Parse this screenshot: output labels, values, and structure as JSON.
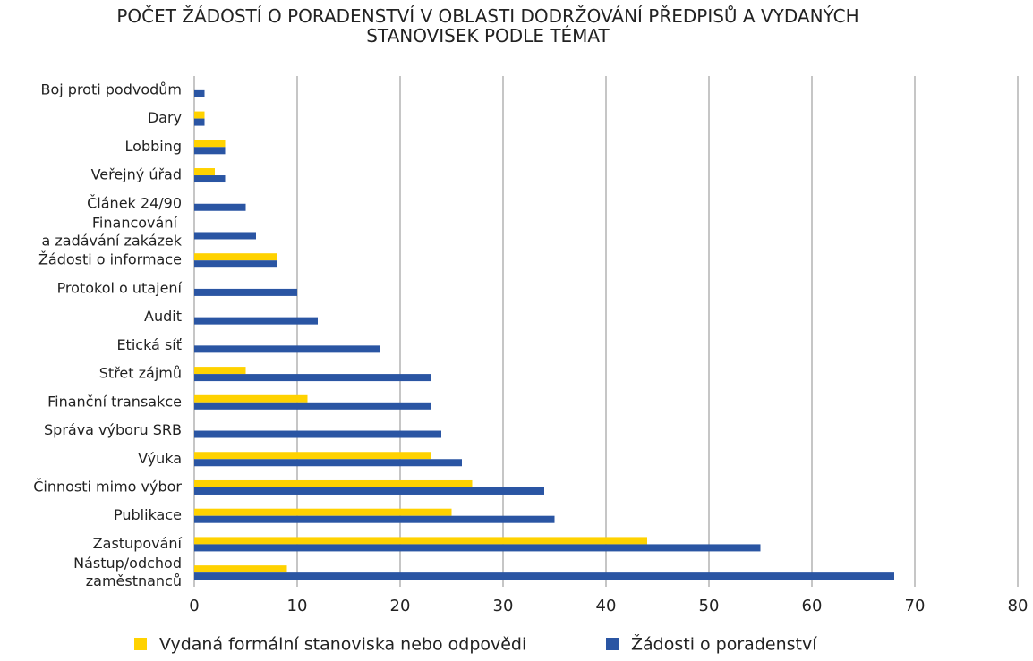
{
  "chart_data": {
    "type": "bar",
    "orientation": "horizontal",
    "title": "POČET ŽÁDOSTÍ O PORADENSTVÍ V OBLASTI DODRŽOVÁNÍ PŘEDPISŮ A VYDANÝCH\nSTANOVISEK PODLE TÉMAT",
    "categories": [
      "Boj proti podvodům",
      "Dary",
      "Lobbing",
      "Veřejný úřad",
      "Článek 24/90",
      "Financování \na zadávání zakázek",
      "Žádosti o informace",
      "Protokol o utajení",
      "Audit",
      "Etická síť",
      "Střet zájmů",
      "Finanční transakce",
      "Správa výboru SRB",
      "Výuka",
      "Činnosti mimo výbor",
      "Publikace",
      "Zastupování",
      "Nástup/odchod\nzaměstnanců"
    ],
    "series": [
      {
        "name": "Vydaná formální stanoviska nebo odpovědi",
        "color": "#ffd200",
        "values": [
          0,
          1,
          3,
          2,
          0,
          0,
          8,
          0,
          0,
          0,
          5,
          11,
          0,
          23,
          27,
          25,
          44,
          9
        ]
      },
      {
        "name": "Žádosti o poradenství",
        "color": "#2a55a3",
        "values": [
          1,
          1,
          3,
          3,
          5,
          6,
          8,
          10,
          12,
          18,
          23,
          23,
          24,
          26,
          34,
          35,
          55,
          68
        ]
      }
    ],
    "xlim": [
      0,
      80
    ],
    "xticks": [
      0,
      10,
      20,
      30,
      40,
      50,
      60,
      70,
      80
    ],
    "grid": true,
    "legend": "bottom"
  }
}
